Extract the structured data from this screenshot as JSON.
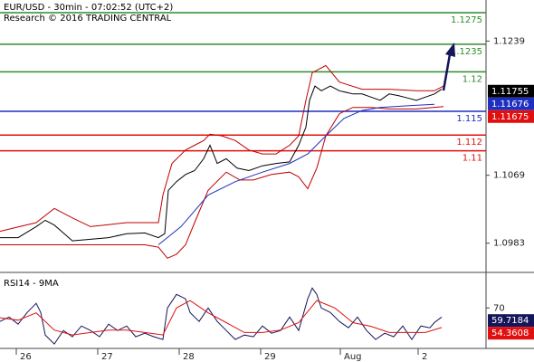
{
  "chart_data": [
    {
      "type": "line",
      "title": "EUR/USD - 30min - 07:02:52 (UTC+2)",
      "subtitle": "Research © 2016 TRADING CENTRAL",
      "ylim": [
        1.0946,
        1.1291
      ],
      "yticks": [
        1.1239,
        1.1069,
        1.0983
      ],
      "xlim": [
        0,
        537
      ],
      "grid": false,
      "levels": [
        {
          "value": 1.1275,
          "color": "#2e8b2e"
        },
        {
          "value": 1.1235,
          "color": "#2e8b2e"
        },
        {
          "value": 1.12,
          "color": "#2e8b2e"
        },
        {
          "value": 1.115,
          "color": "#1f2fbf"
        },
        {
          "value": 1.112,
          "color": "#e01010"
        },
        {
          "value": 1.11,
          "color": "#e01010"
        }
      ],
      "markers": [
        {
          "value": 1.11755,
          "color": "#000000"
        },
        {
          "value": 1.11676,
          "color": "#1f2fbf"
        },
        {
          "value": 1.11675,
          "color": "#e01010"
        }
      ],
      "series": [
        {
          "color": "#c00000",
          "x": [
            0,
            40,
            60,
            80,
            100,
            140,
            160,
            175,
            180,
            190,
            205,
            215,
            225,
            232,
            245,
            260,
            275,
            290,
            305,
            320,
            330,
            338,
            345,
            360,
            375,
            400,
            430,
            460,
            480,
            490
          ],
          "values": [
            1.0998,
            1.1009,
            1.1027,
            1.1015,
            1.1004,
            1.1009,
            1.1009,
            1.1009,
            1.1044,
            1.1084,
            1.1101,
            1.1107,
            1.1113,
            1.1121,
            1.1119,
            1.1113,
            1.1101,
            1.1096,
            1.1096,
            1.1107,
            1.1119,
            1.1164,
            1.1199,
            1.1208,
            1.1187,
            1.1178,
            1.1178,
            1.1176,
            1.1176,
            1.1182
          ]
        },
        {
          "color": "#c00000",
          "x": [
            0,
            40,
            80,
            120,
            160,
            175,
            185,
            195,
            205,
            215,
            230,
            250,
            265,
            280,
            300,
            320,
            330,
            340,
            350,
            360,
            375,
            390,
            410,
            430,
            460,
            490
          ],
          "values": [
            1.0981,
            1.0981,
            1.0981,
            1.0981,
            1.0981,
            1.0978,
            1.0964,
            1.0969,
            1.0981,
            1.1009,
            1.105,
            1.1073,
            1.1063,
            1.1063,
            1.107,
            1.1073,
            1.1067,
            1.1052,
            1.1078,
            1.1119,
            1.1147,
            1.1155,
            1.1155,
            1.1153,
            1.1153,
            1.1156
          ]
        },
        {
          "color": "#1f2fbf",
          "x": [
            175,
            200,
            230,
            260,
            290,
            320,
            340,
            360,
            380,
            400,
            420,
            450,
            480
          ],
          "values": [
            1.0981,
            1.1004,
            1.1044,
            1.1061,
            1.1073,
            1.1084,
            1.1096,
            1.1119,
            1.1141,
            1.1151,
            1.1155,
            1.1157,
            1.1159
          ]
        },
        {
          "color": "#000000",
          "x": [
            0,
            20,
            40,
            50,
            60,
            80,
            100,
            120,
            140,
            160,
            175,
            182,
            186,
            195,
            205,
            215,
            225,
            232,
            240,
            250,
            262,
            275,
            290,
            305,
            320,
            330,
            338,
            342,
            348,
            355,
            365,
            375,
            390,
            400,
            410,
            420,
            430,
            440,
            450,
            460,
            470,
            480,
            488
          ],
          "values": [
            1.099,
            1.099,
            1.1004,
            1.1012,
            1.1006,
            1.0986,
            1.0988,
            1.099,
            1.0995,
            1.0996,
            1.099,
            1.0995,
            1.105,
            1.1061,
            1.107,
            1.1075,
            1.109,
            1.1107,
            1.1084,
            1.109,
            1.1078,
            1.1075,
            1.1081,
            1.1084,
            1.1086,
            1.1107,
            1.113,
            1.1164,
            1.1182,
            1.1176,
            1.1182,
            1.1176,
            1.1172,
            1.1172,
            1.1168,
            1.1164,
            1.1172,
            1.117,
            1.1167,
            1.1164,
            1.1168,
            1.1172,
            1.1178
          ]
        }
      ]
    },
    {
      "type": "line",
      "title": "RSI14 - 9MA",
      "ylim": [
        37,
        96
      ],
      "yticks": [
        70
      ],
      "xlim": [
        0,
        537
      ],
      "xticks": [
        {
          "value": 18,
          "label": "26"
        },
        {
          "value": 108,
          "label": "27"
        },
        {
          "value": 198,
          "label": "28"
        },
        {
          "value": 288,
          "label": "29"
        },
        {
          "value": 376,
          "label": "Aug"
        },
        {
          "value": 462,
          "label": "2"
        }
      ],
      "markers": [
        {
          "value": 59.7184,
          "color": "#15155a"
        },
        {
          "value": 54.3608,
          "color": "#e01010"
        }
      ],
      "series": [
        {
          "color": "#15155a",
          "x": [
            0,
            10,
            20,
            30,
            40,
            45,
            50,
            60,
            70,
            80,
            90,
            100,
            110,
            120,
            130,
            140,
            150,
            160,
            170,
            180,
            185,
            195,
            205,
            210,
            220,
            230,
            240,
            250,
            260,
            270,
            280,
            290,
            300,
            310,
            320,
            330,
            340,
            345,
            350,
            355,
            365,
            375,
            385,
            395,
            405,
            415,
            425,
            435,
            445,
            455,
            465,
            475,
            480,
            488
          ],
          "values": [
            59,
            62.6,
            56.8,
            66.3,
            73.7,
            66.3,
            47.9,
            40.6,
            51.6,
            46.5,
            55.3,
            51.6,
            46.5,
            56.8,
            51.6,
            55.3,
            46.5,
            49.4,
            46.5,
            44.3,
            70,
            81,
            77.4,
            66.3,
            59,
            70,
            59,
            51.6,
            44.3,
            47.9,
            46.5,
            55.3,
            49.4,
            51.6,
            62.6,
            51.6,
            77.4,
            86.2,
            81,
            70,
            66.3,
            59,
            53.8,
            62.6,
            51.6,
            44.3,
            49.4,
            46.5,
            55.3,
            44.3,
            55.3,
            53.8,
            58.1,
            62.6
          ]
        },
        {
          "color": "#e01010",
          "x": [
            0,
            20,
            40,
            60,
            80,
            100,
            120,
            140,
            160,
            180,
            195,
            210,
            230,
            250,
            270,
            290,
            310,
            330,
            350,
            370,
            390,
            410,
            430,
            450,
            470,
            488
          ],
          "values": [
            62,
            60,
            66,
            52,
            48,
            50,
            52,
            52,
            50,
            48,
            70,
            76,
            66,
            58,
            50,
            50,
            52,
            58,
            76,
            70,
            58,
            55,
            50,
            50,
            50,
            54
          ]
        }
      ]
    }
  ]
}
